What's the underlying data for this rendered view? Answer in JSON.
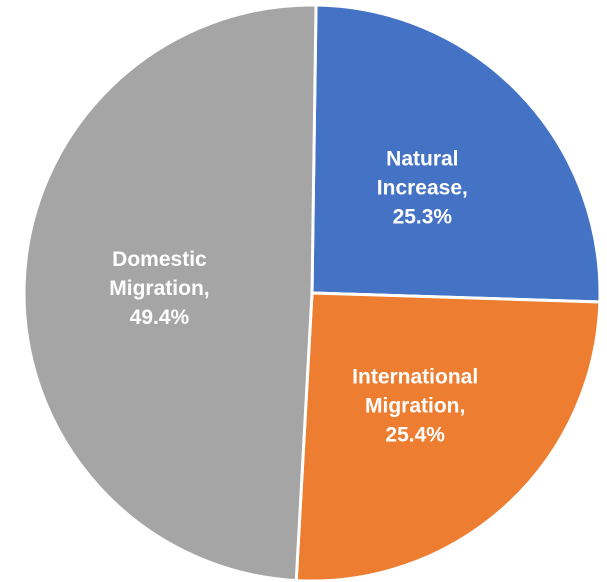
{
  "chart_data": {
    "type": "pie",
    "title": "",
    "legend": "none",
    "slices": [
      {
        "name": "Natural Increase",
        "label_lines": [
          "Natural",
          "Increase,",
          "25.3%"
        ],
        "value": 25.3,
        "percent_label": "25.3%",
        "color": "#4472C4"
      },
      {
        "name": "International Migration",
        "label_lines": [
          "International",
          "Migration,",
          "25.4%"
        ],
        "value": 25.4,
        "percent_label": "25.4%",
        "color": "#ED7D31"
      },
      {
        "name": "Domestic Migration",
        "label_lines": [
          "Domestic",
          "Migration,",
          "49.4%"
        ],
        "value": 49.4,
        "percent_label": "49.4%",
        "color": "#A5A5A5"
      }
    ]
  }
}
